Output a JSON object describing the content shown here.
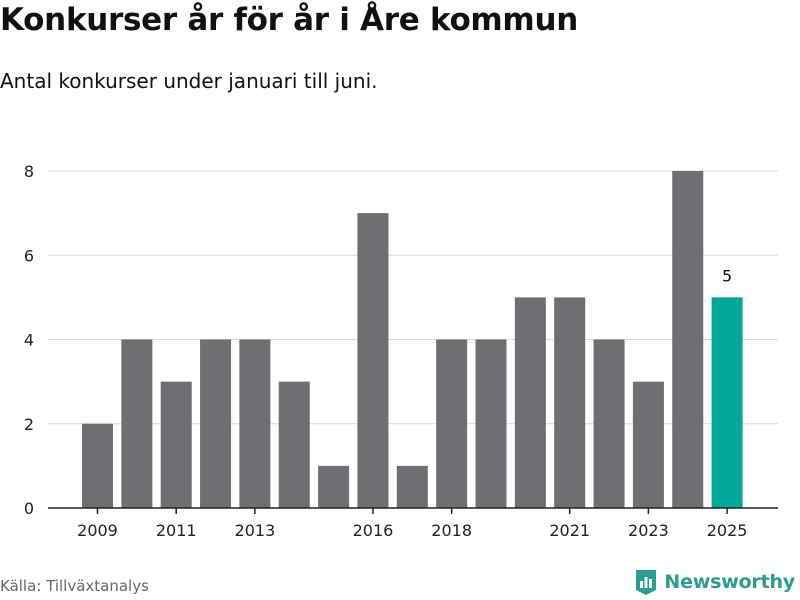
{
  "header": {
    "title": "Konkurser år för år i Åre kommun",
    "subtitle": "Antal konkurser under januari till juni."
  },
  "footer": {
    "source": "Källa: Tillväxtanalys",
    "brand": "Newsworthy"
  },
  "colors": {
    "bar": "#6f6e73",
    "highlight": "#00a698",
    "grid": "#d9d9d9",
    "axis": "#222222",
    "brand": "#2a9d8f"
  },
  "icons": {
    "brand_logo": "chart-logo-icon"
  },
  "chart_data": {
    "type": "bar",
    "categories": [
      "2009",
      "2010",
      "2011",
      "2012",
      "2013",
      "2014",
      "2015",
      "2016",
      "2017",
      "2018",
      "2019",
      "2020",
      "2021",
      "2022",
      "2023",
      "2024",
      "2025"
    ],
    "values": [
      2,
      4,
      3,
      4,
      4,
      3,
      1,
      7,
      1,
      4,
      4,
      5,
      5,
      4,
      3,
      8,
      5
    ],
    "highlight_index": 16,
    "data_labels": [
      {
        "index": 16,
        "text": "5"
      }
    ],
    "x_tick_labels": [
      "2009",
      "2011",
      "2013",
      "2016",
      "2018",
      "2021",
      "2023",
      "2025"
    ],
    "y_ticks": [
      0,
      2,
      4,
      6,
      8
    ],
    "ylim": [
      0,
      8
    ],
    "grid": true,
    "xlabel": "",
    "ylabel": ""
  }
}
